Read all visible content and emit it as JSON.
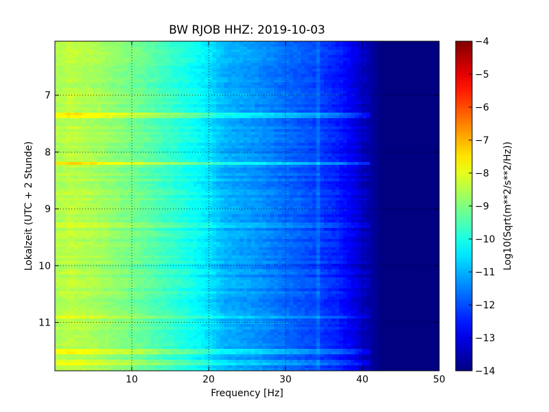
{
  "chart_data": {
    "type": "heatmap",
    "title": "BW RJOB HHZ: 2019-10-03",
    "xlabel": "Frequency [Hz]",
    "ylabel": "Lokalzeit (UTC + 2 Stunde)",
    "xlim": [
      0,
      50
    ],
    "ylim": [
      6.05,
      11.85
    ],
    "y_inverted": true,
    "x_ticks": [
      10,
      20,
      30,
      40,
      50
    ],
    "y_ticks": [
      7,
      8,
      9,
      10,
      11
    ],
    "grid": true,
    "colormap": "jet",
    "colorbar": {
      "label": "Log10(Sqrt(m**2/s**2/Hz))",
      "range": [
        -14,
        -4
      ],
      "ticks": [
        -4,
        -5,
        -6,
        -7,
        -8,
        -9,
        -10,
        -11,
        -12,
        -13,
        -14
      ]
    },
    "spectrum_profile": [
      {
        "frequency": 0,
        "value": -8.6
      },
      {
        "frequency": 2,
        "value": -8.4
      },
      {
        "frequency": 5,
        "value": -8.6
      },
      {
        "frequency": 8,
        "value": -8.9
      },
      {
        "frequency": 11,
        "value": -9.2
      },
      {
        "frequency": 14,
        "value": -9.6
      },
      {
        "frequency": 17,
        "value": -10.0
      },
      {
        "frequency": 19.5,
        "value": -10.4
      },
      {
        "frequency": 22,
        "value": -11.0
      },
      {
        "frequency": 26,
        "value": -11.3
      },
      {
        "frequency": 30,
        "value": -11.7
      },
      {
        "frequency": 34,
        "value": -12.1
      },
      {
        "frequency": 37,
        "value": -12.5
      },
      {
        "frequency": 39,
        "value": -13.0
      },
      {
        "frequency": 41,
        "value": -13.6
      },
      {
        "frequency": 42.5,
        "value": -14.0
      },
      {
        "frequency": 50,
        "value": -14.0
      }
    ],
    "noise_bands": [
      {
        "time": 7.35,
        "delta": 0.9
      },
      {
        "time": 8.2,
        "delta": 0.9
      },
      {
        "time": 9.3,
        "delta": 0.5
      },
      {
        "time": 10.9,
        "delta": 0.6
      },
      {
        "time": 11.5,
        "delta": 0.8
      },
      {
        "time": 11.7,
        "delta": 0.6
      }
    ],
    "tone_frequency_hz": 34.3
  }
}
